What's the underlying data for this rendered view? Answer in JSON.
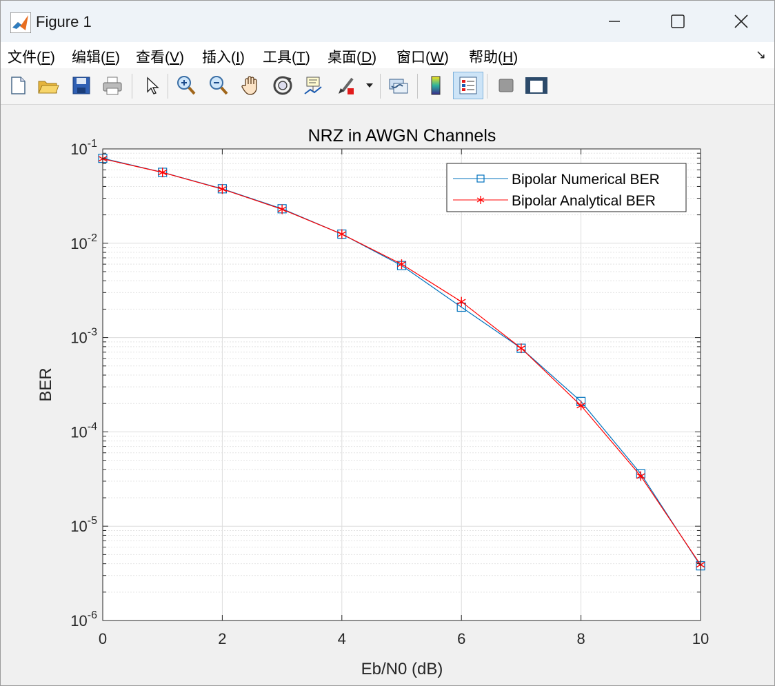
{
  "window": {
    "title": "Figure 1"
  },
  "menu": [
    {
      "prefix": "文件(",
      "key": "F",
      "suffix": ")"
    },
    {
      "prefix": "编辑(",
      "key": "E",
      "suffix": ")"
    },
    {
      "prefix": "查看(",
      "key": "V",
      "suffix": ")"
    },
    {
      "prefix": "插入(",
      "key": "I",
      "suffix": ")"
    },
    {
      "prefix": "工具(",
      "key": "T",
      "suffix": ")"
    },
    {
      "prefix": "桌面(",
      "key": "D",
      "suffix": ")"
    },
    {
      "prefix": "窗口(",
      "key": "W",
      "suffix": ")"
    },
    {
      "prefix": "帮助(",
      "key": "H",
      "suffix": ")"
    }
  ],
  "toolbar": {
    "icons": [
      "new-figure-icon",
      "open-file-icon",
      "save-icon",
      "print-icon",
      "pointer-icon",
      "zoom-in-icon",
      "zoom-out-icon",
      "pan-hand-icon",
      "rotate-3d-icon",
      "data-cursor-icon",
      "brush-icon",
      "link-plot-icon",
      "colorbar-icon",
      "legend-icon",
      "hide-plot-tools-icon",
      "show-plot-tools-icon"
    ]
  },
  "chart_data": {
    "type": "line",
    "title": "NRZ in AWGN Channels",
    "xlabel": "Eb/N0 (dB)",
    "ylabel": "BER",
    "xlim": [
      0,
      10
    ],
    "ylim": [
      1e-06,
      0.1
    ],
    "yscale": "log",
    "grid": true,
    "legend_position": "top-right",
    "x_ticks": [
      "0",
      "2",
      "4",
      "6",
      "8",
      "10"
    ],
    "y_ticks": [
      {
        "base": "10",
        "exp": "-1"
      },
      {
        "base": "10",
        "exp": "-2"
      },
      {
        "base": "10",
        "exp": "-3"
      },
      {
        "base": "10",
        "exp": "-4"
      },
      {
        "base": "10",
        "exp": "-5"
      },
      {
        "base": "10",
        "exp": "-6"
      }
    ],
    "x": [
      0,
      1,
      2,
      3,
      4,
      5,
      6,
      7,
      8,
      9,
      10
    ],
    "series": [
      {
        "name": "Bipolar Numerical BER",
        "color": "#0072bd",
        "marker": "square",
        "values": [
          0.0795,
          0.0565,
          0.0378,
          0.0232,
          0.0125,
          0.0058,
          0.0021,
          0.00077,
          0.00021,
          3.6e-05,
          3.8e-06
        ]
      },
      {
        "name": "Bipolar Analytical BER",
        "color": "#ff0000",
        "marker": "asterisk",
        "values": [
          0.0786,
          0.0563,
          0.0375,
          0.0229,
          0.0125,
          0.006,
          0.0024,
          0.00077,
          0.00019,
          3.4e-05,
          3.9e-06
        ]
      }
    ]
  }
}
